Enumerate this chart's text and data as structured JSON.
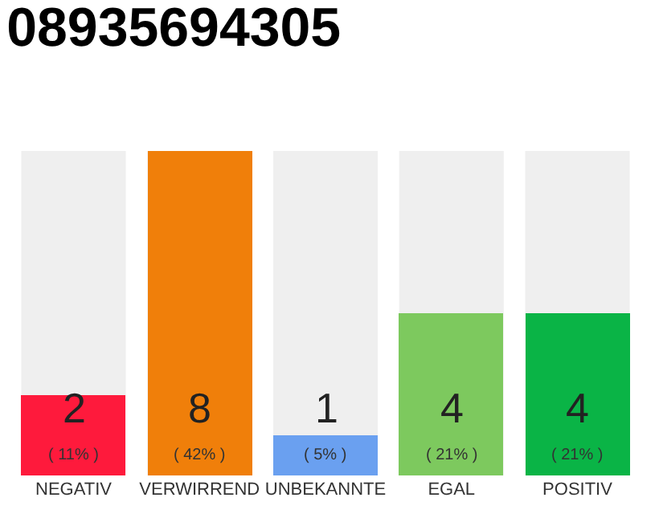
{
  "chart_data": {
    "type": "bar",
    "title": "08935694305",
    "categories": [
      "NEGATIV",
      "VERWIRREND",
      "UNBEKANNTE",
      "EGAL",
      "POSITIV"
    ],
    "values": [
      2,
      8,
      1,
      4,
      4
    ],
    "colors": [
      "#fe1a3c",
      "#f07f0a",
      "#6aa0f0",
      "#7dc95e",
      "#0ab446"
    ],
    "data_labels": true,
    "annotations": [
      "( 11% )",
      "( 42% )",
      "( 5% )",
      "( 21% )",
      "( 21% )"
    ],
    "grid": false,
    "legend": false
  }
}
